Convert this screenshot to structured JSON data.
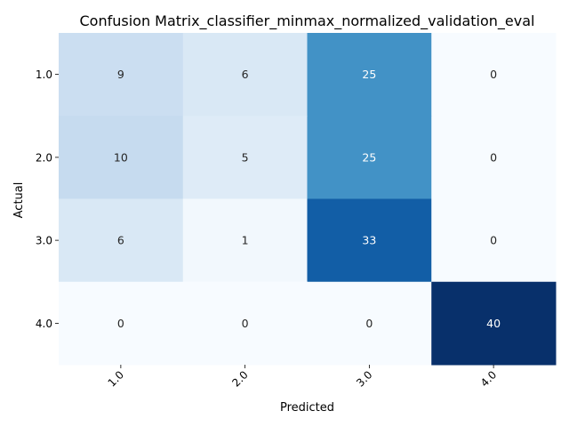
{
  "chart_data": {
    "type": "heatmap",
    "title": "Confusion Matrix_classifier_minmax_normalized_validation_eval",
    "xlabel": "Predicted",
    "ylabel": "Actual",
    "x_categories": [
      "1.0",
      "2.0",
      "3.0",
      "4.0"
    ],
    "y_categories": [
      "1.0",
      "2.0",
      "3.0",
      "4.0"
    ],
    "values": [
      [
        9,
        6,
        25,
        0
      ],
      [
        10,
        5,
        25,
        0
      ],
      [
        6,
        1,
        33,
        0
      ],
      [
        0,
        0,
        0,
        40
      ]
    ],
    "colormap": "Blues",
    "vmin": 0,
    "vmax": 40,
    "colorbar": false,
    "annotations": true,
    "x_tick_rotation": 45
  }
}
